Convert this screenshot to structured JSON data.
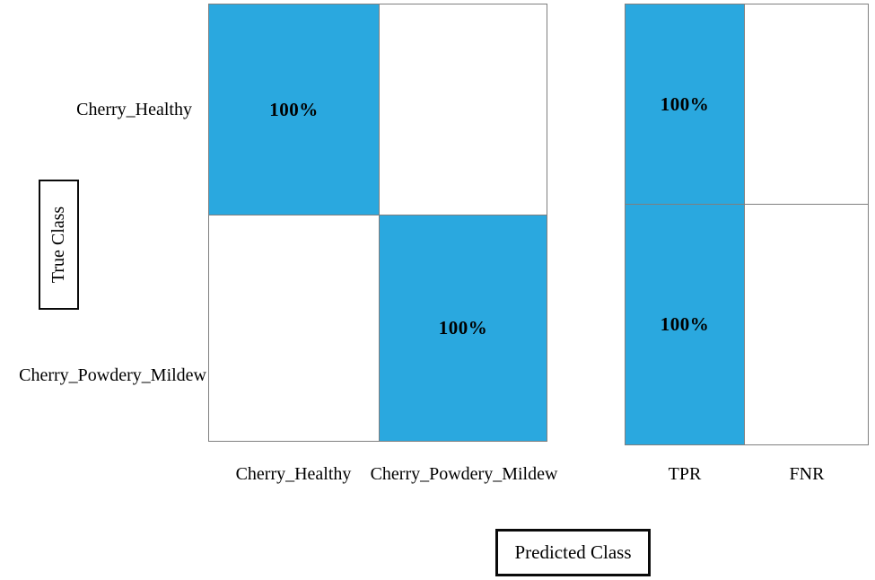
{
  "chart_data": {
    "type": "heatmap",
    "variant": "confusion-matrix",
    "xlabel": "Predicted Class",
    "ylabel": "True Class",
    "true_classes": [
      "Cherry_Healthy",
      "Cherry_Powdery_Mildew"
    ],
    "predicted_classes": [
      "Cherry_Healthy",
      "Cherry_Powdery_Mildew"
    ],
    "matrix_percent": [
      [
        100,
        0
      ],
      [
        0,
        100
      ]
    ],
    "cell_labels": [
      [
        "100%",
        ""
      ],
      [
        "",
        "100%"
      ]
    ],
    "summary_columns": [
      "TPR",
      "FNR"
    ],
    "summary_percent": [
      [
        100,
        0
      ],
      [
        100,
        0
      ]
    ],
    "summary_labels": [
      [
        "100%",
        ""
      ],
      [
        "100%",
        ""
      ]
    ],
    "layout": {
      "grid": "off",
      "legend": "none",
      "row_summary_position": "right"
    },
    "colors": {
      "filled_cell": "#2AA8DF",
      "empty_cell": "#FFFFFF",
      "grid_line": "#7F7F7F",
      "text": "#000000"
    }
  }
}
